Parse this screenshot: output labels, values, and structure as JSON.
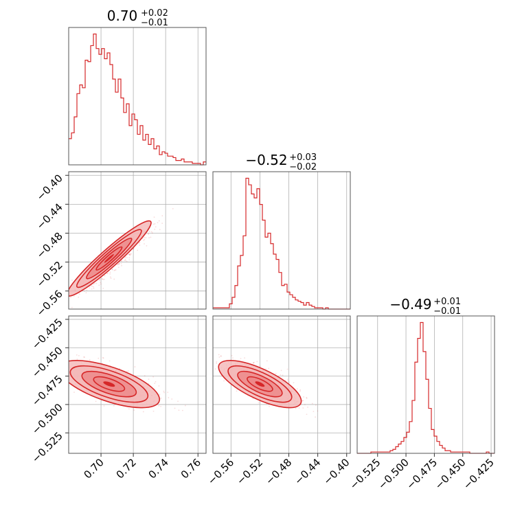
{
  "chart_data": {
    "type": "corner",
    "color": "#d62728",
    "fill_light": "#f4b6b6",
    "fill_mid": "#ec8787",
    "grid": true,
    "params": [
      {
        "title": {
          "value": "0.70",
          "upper": "+0.02",
          "lower": "−0.01"
        },
        "range": [
          0.68,
          0.765
        ],
        "ticks": [
          {
            "v": 0.7,
            "label": "0.70"
          },
          {
            "v": 0.72,
            "label": "0.72"
          },
          {
            "v": 0.74,
            "label": "0.74"
          },
          {
            "v": 0.76,
            "label": "0.76"
          }
        ]
      },
      {
        "title": {
          "value": "−0.52",
          "upper": "+0.03",
          "lower": "−0.02"
        },
        "range": [
          -0.585,
          -0.395
        ],
        "ticks": [
          {
            "v": -0.56,
            "label": "−0.56"
          },
          {
            "v": -0.52,
            "label": "−0.52"
          },
          {
            "v": -0.48,
            "label": "−0.48"
          },
          {
            "v": -0.44,
            "label": "−0.44"
          },
          {
            "v": -0.4,
            "label": "−0.40"
          }
        ]
      },
      {
        "title": {
          "value": "−0.49",
          "upper": "+0.01",
          "lower": "−0.01"
        },
        "range": [
          -0.543,
          -0.422
        ],
        "ticks": [
          {
            "v": -0.525,
            "label": "−0.525"
          },
          {
            "v": -0.5,
            "label": "−0.500"
          },
          {
            "v": -0.475,
            "label": "−0.475"
          },
          {
            "v": -0.45,
            "label": "−0.450"
          },
          {
            "v": -0.425,
            "label": "−0.425"
          }
        ]
      }
    ],
    "histograms": [
      {
        "param": 0,
        "edges_range": [
          0.68,
          0.765
        ],
        "counts": [
          18,
          22,
          33,
          49,
          55,
          53,
          72,
          71,
          82,
          90,
          80,
          76,
          80,
          73,
          77,
          69,
          59,
          50,
          59,
          46,
          36,
          42,
          27,
          35,
          31,
          21,
          27,
          17,
          21,
          14,
          18,
          11,
          13,
          7,
          9,
          8,
          6,
          6,
          5,
          3,
          3,
          4,
          2,
          2,
          2,
          1,
          1,
          1,
          0,
          2
        ]
      },
      {
        "param": 1,
        "edges_range": [
          -0.585,
          -0.395
        ],
        "counts": [
          1,
          1,
          1,
          1,
          1,
          1,
          4,
          9,
          18,
          33,
          41,
          56,
          100,
          95,
          88,
          85,
          92,
          80,
          68,
          55,
          58,
          50,
          42,
          38,
          28,
          18,
          19,
          13,
          11,
          9,
          7,
          6,
          5,
          3,
          5,
          3,
          2,
          1,
          1,
          1,
          0,
          1,
          0,
          0,
          0,
          0,
          0,
          0,
          0,
          0
        ]
      },
      {
        "param": 2,
        "edges_range": [
          -0.543,
          -0.422
        ],
        "counts": [
          0,
          0,
          0,
          0,
          0,
          1,
          1,
          1,
          1,
          1,
          1,
          1,
          2,
          3,
          5,
          7,
          9,
          12,
          16,
          24,
          40,
          69,
          87,
          99,
          77,
          56,
          34,
          18,
          13,
          9,
          6,
          4,
          2,
          2,
          1,
          1,
          1,
          1,
          1,
          1,
          1,
          0,
          0,
          0,
          0,
          0,
          0,
          1,
          0,
          0
        ]
      }
    ],
    "correlations": [
      {
        "x": 0,
        "y": 1,
        "mean": [
          0.705,
          -0.515
        ],
        "sd": [
          0.01,
          0.02
        ],
        "rho": 0.95
      },
      {
        "x": 0,
        "y": 2,
        "mean": [
          0.705,
          -0.482
        ],
        "sd": [
          0.012,
          0.008
        ],
        "rho": -0.65
      },
      {
        "x": 1,
        "y": 2,
        "mean": [
          -0.52,
          -0.482
        ],
        "sd": [
          0.022,
          0.008
        ],
        "rho": -0.72
      }
    ]
  }
}
